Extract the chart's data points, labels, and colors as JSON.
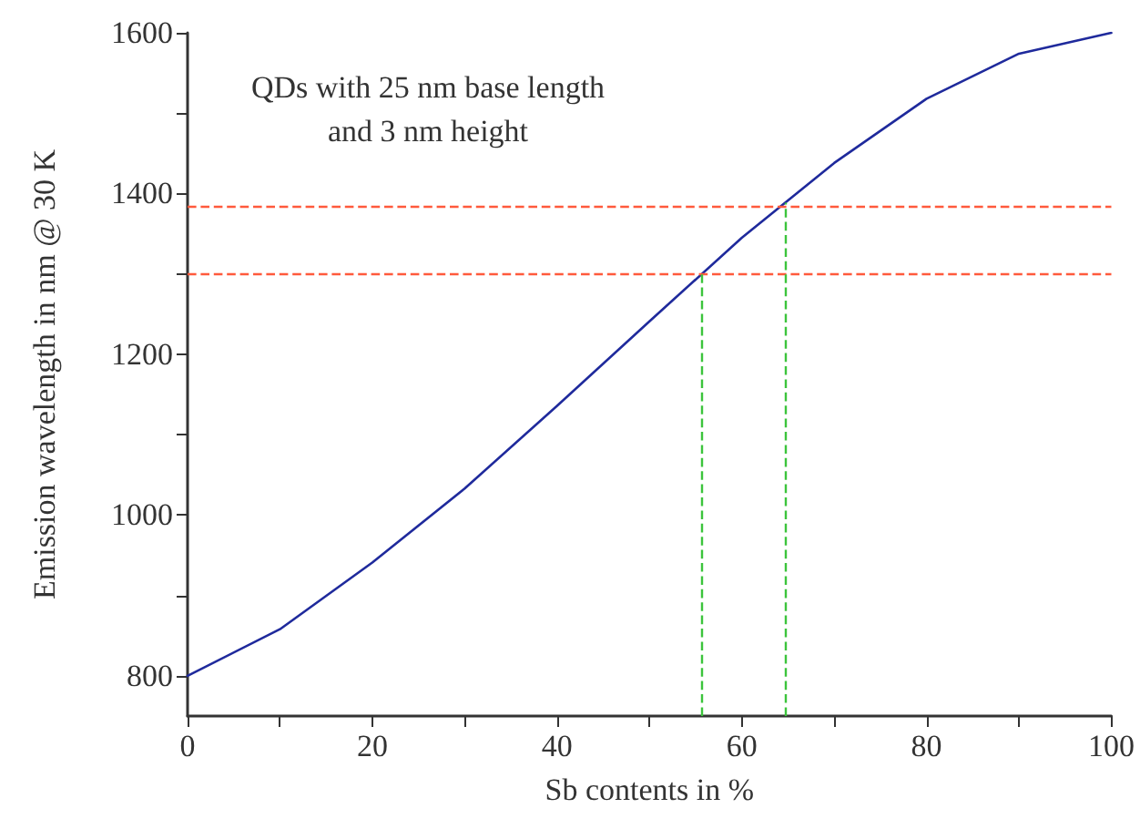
{
  "chart_data": {
    "type": "line",
    "xlabel": "Sb contents in %",
    "ylabel": "Emission wavelength in nm @ 30 K",
    "annotations": [
      "QDs with 25 nm base length\nand 3 nm height"
    ],
    "x": [
      0,
      10,
      20,
      30,
      40,
      50,
      60,
      70,
      80,
      90,
      100
    ],
    "series": [
      {
        "color": "#1f2a9c",
        "values": [
          800,
          858,
          941,
          1033,
          1136,
          1241,
          1345,
          1438,
          1518,
          1574,
          1600
        ]
      }
    ],
    "xlim": [
      0,
      100
    ],
    "ylim": [
      750,
      1600
    ],
    "xticks": [
      0,
      {
        "value": 10,
        "label": null
      },
      20,
      {
        "value": 30,
        "label": null
      },
      40,
      {
        "value": 50,
        "label": null
      },
      60,
      {
        "value": 70,
        "label": null
      },
      80,
      {
        "value": 90,
        "label": null
      },
      100
    ],
    "yticks": [
      800,
      {
        "value": 900,
        "label": null
      },
      1000,
      {
        "value": 1100,
        "label": null
      },
      1200,
      {
        "value": 1300,
        "label": null
      },
      1400,
      {
        "value": 1500,
        "label": null
      },
      1600
    ],
    "ref_lines": [
      {
        "axis": "y",
        "value": 1385,
        "color": "#ff5a3c",
        "line_style": "dashed"
      },
      {
        "axis": "y",
        "value": 1300,
        "color": "#ff5a3c",
        "line_style": "dashed"
      },
      {
        "axis": "x",
        "value": 55.7,
        "color": "#3cc43c",
        "line_style": "dashed"
      },
      {
        "axis": "x",
        "value": 64.7,
        "color": "#3cc43c",
        "line_style": "dashed"
      }
    ],
    "marker": "none",
    "line_style": "solid"
  }
}
